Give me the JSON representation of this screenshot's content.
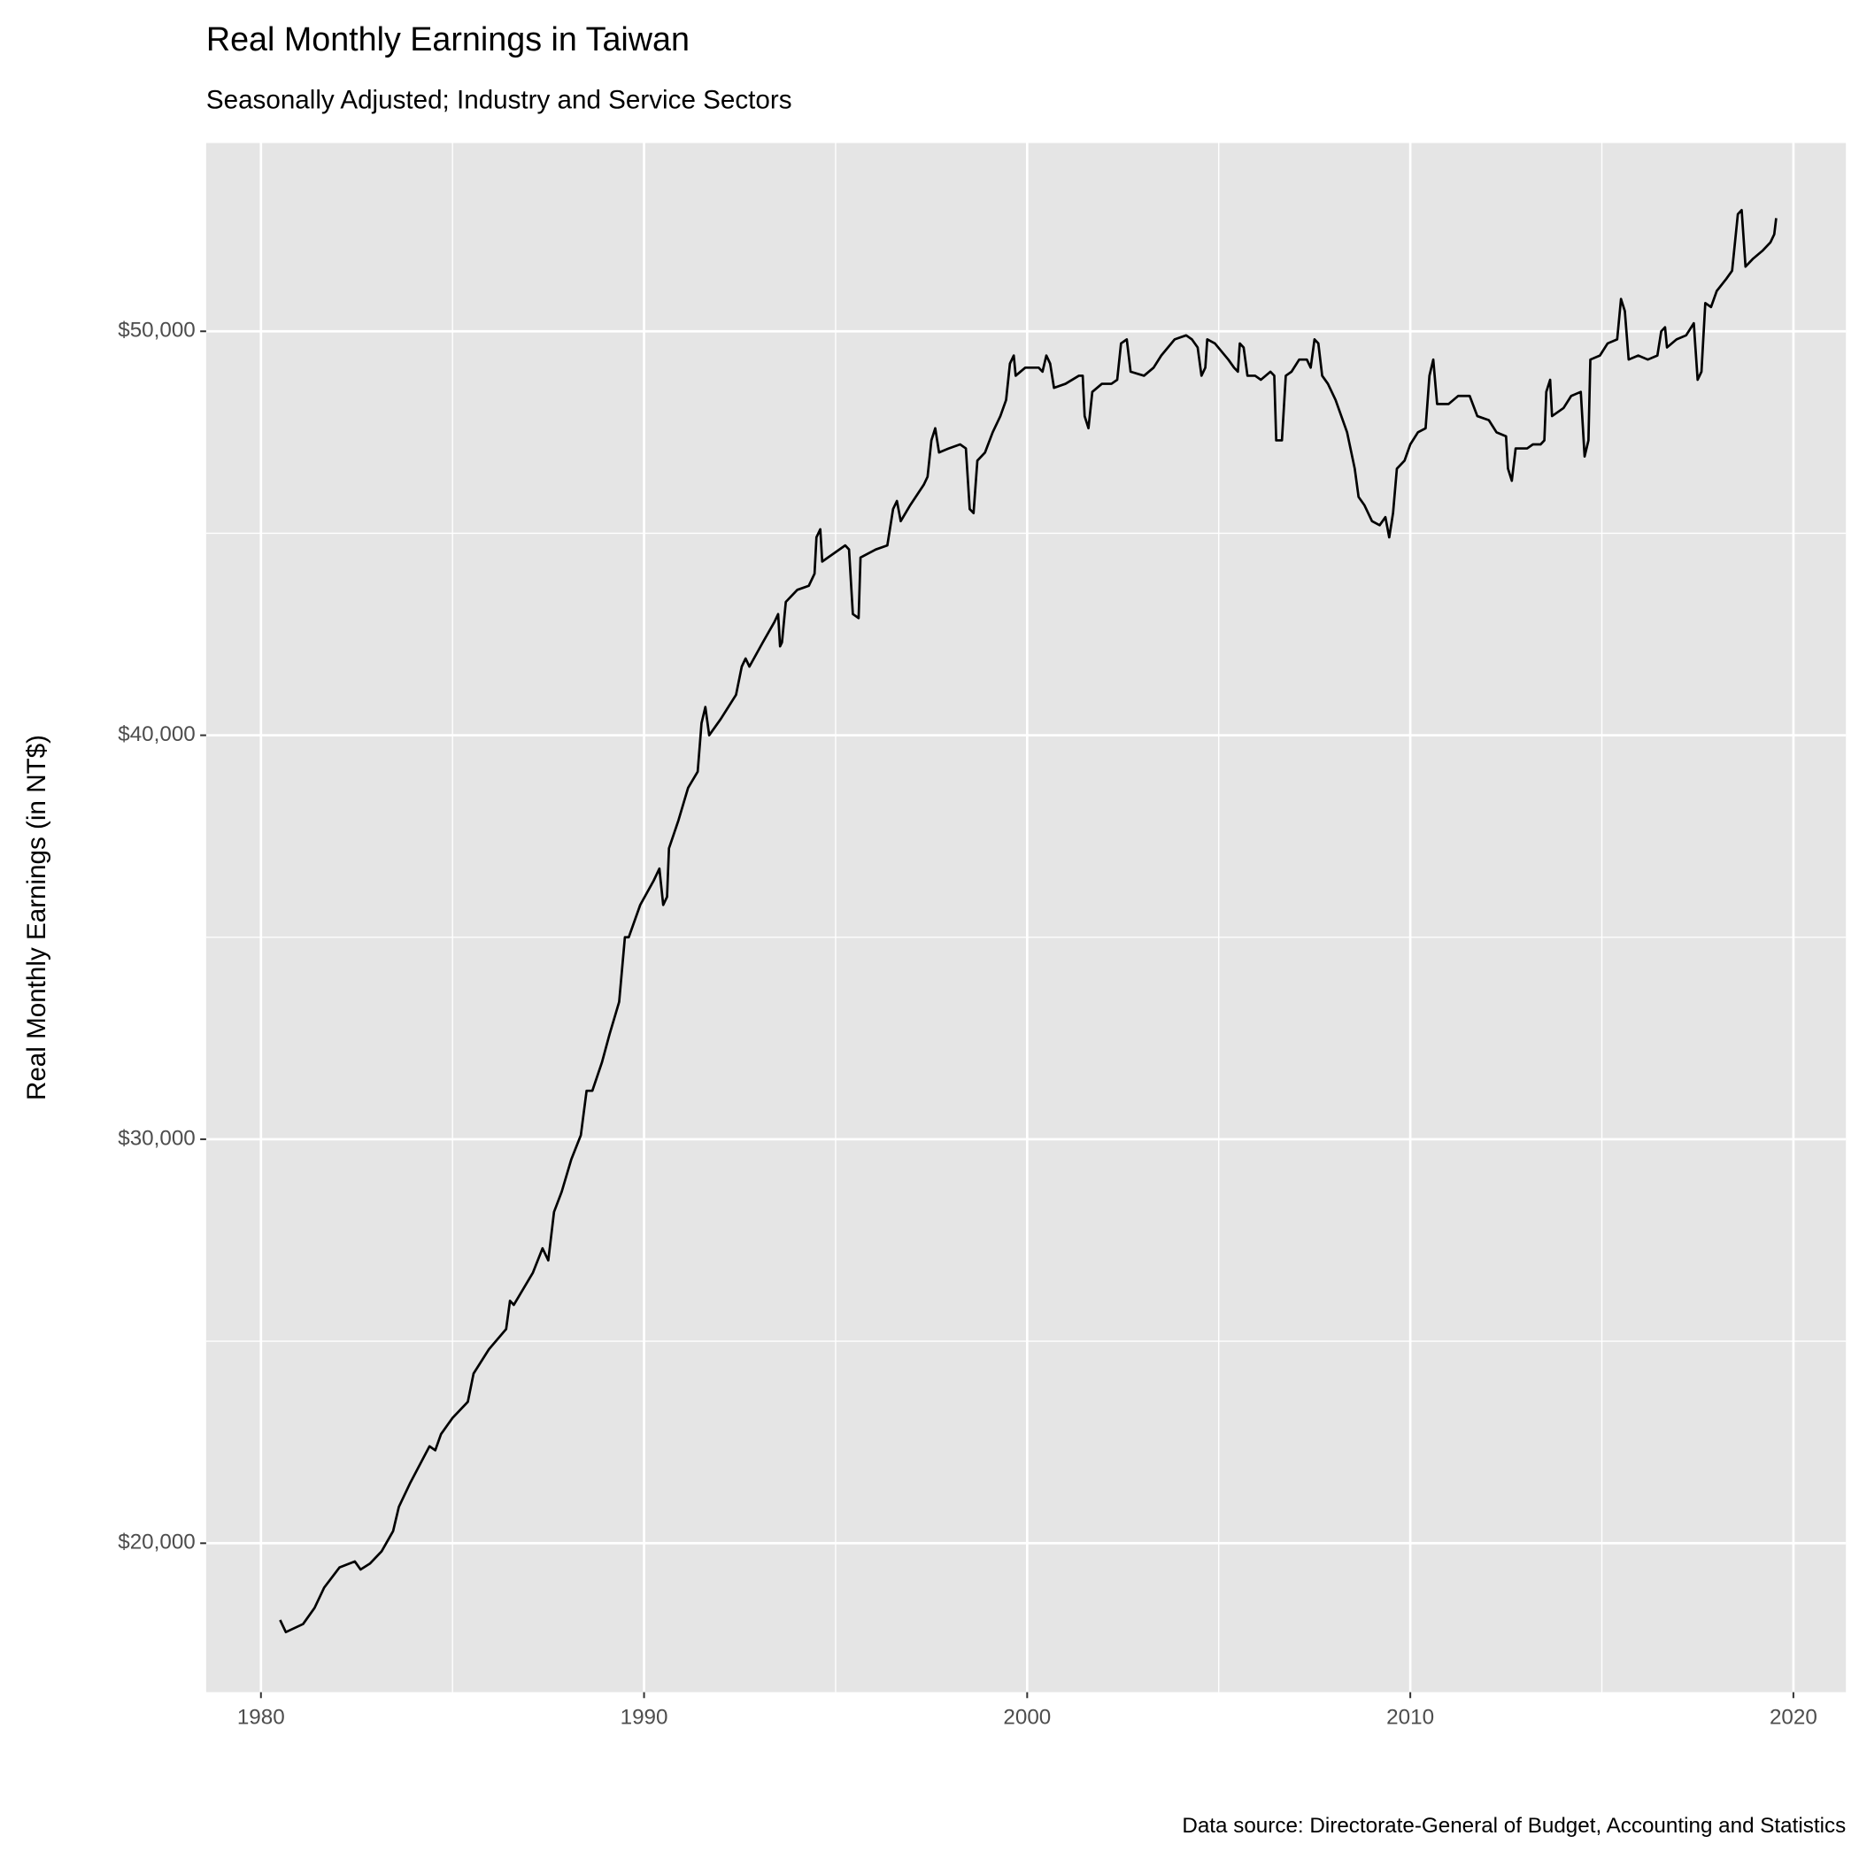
{
  "chart_data": {
    "type": "line",
    "title": "Real Monthly Earnings in Taiwan",
    "subtitle": "Seasonally Adjusted; Industry and Service Sectors",
    "y_label": "Real Monthly Earnings (in NT$)",
    "caption": "Data source: Directorate-General of Budget, Accounting and Statistics",
    "color": "#000000",
    "grid": true,
    "minor_grid": true,
    "background": "#e5e5e5",
    "xlim": [
      1978.57,
      2021.37
    ],
    "ylim": [
      16313,
      54661
    ],
    "xticks": [
      1980,
      1990,
      2000,
      2010,
      2020
    ],
    "yticks": [
      {
        "value": 20000,
        "label": "$20,000"
      },
      {
        "value": 30000,
        "label": "$30,000"
      },
      {
        "value": 40000,
        "label": "$40,000"
      },
      {
        "value": 50000,
        "label": "$50,000"
      }
    ],
    "x": [
      1980.5,
      1980.65,
      1981.1,
      1981.4,
      1981.65,
      1982.05,
      1982.45,
      1982.6,
      1982.85,
      1983.15,
      1983.45,
      1983.6,
      1983.9,
      1984.4,
      1984.55,
      1984.7,
      1985.0,
      1985.4,
      1985.55,
      1985.95,
      1986.4,
      1986.5,
      1986.6,
      1987.1,
      1987.35,
      1987.5,
      1987.65,
      1987.85,
      1988.1,
      1988.35,
      1988.5,
      1988.65,
      1988.9,
      1989.1,
      1989.35,
      1989.5,
      1989.6,
      1989.9,
      1990.25,
      1990.4,
      1990.5,
      1990.6,
      1990.65,
      1990.9,
      1991.15,
      1991.4,
      1991.5,
      1991.6,
      1991.7,
      1992.0,
      1992.2,
      1992.4,
      1992.55,
      1992.65,
      1992.75,
      1993.1,
      1993.4,
      1993.5,
      1993.55,
      1993.6,
      1993.7,
      1994.0,
      1994.3,
      1994.45,
      1994.5,
      1994.6,
      1994.65,
      1994.95,
      1995.25,
      1995.35,
      1995.45,
      1995.6,
      1995.65,
      1996.05,
      1996.35,
      1996.5,
      1996.6,
      1996.7,
      1996.95,
      1997.3,
      1997.4,
      1997.5,
      1997.6,
      1997.7,
      1997.95,
      1998.25,
      1998.4,
      1998.5,
      1998.6,
      1998.7,
      1998.9,
      1999.1,
      1999.3,
      1999.45,
      1999.55,
      1999.65,
      1999.7,
      1999.95,
      2000.3,
      2000.4,
      2000.5,
      2000.6,
      2000.7,
      2001.0,
      2001.35,
      2001.45,
      2001.5,
      2001.6,
      2001.7,
      2001.95,
      2002.2,
      2002.35,
      2002.45,
      2002.6,
      2002.7,
      2003.05,
      2003.3,
      2003.5,
      2003.85,
      2004.15,
      2004.3,
      2004.45,
      2004.55,
      2004.65,
      2004.7,
      2004.9,
      2005.25,
      2005.4,
      2005.5,
      2005.55,
      2005.65,
      2005.75,
      2005.95,
      2006.1,
      2006.35,
      2006.45,
      2006.5,
      2006.65,
      2006.75,
      2006.9,
      2007.1,
      2007.3,
      2007.4,
      2007.5,
      2007.6,
      2007.7,
      2007.85,
      2008.05,
      2008.2,
      2008.35,
      2008.55,
      2008.65,
      2008.8,
      2009.0,
      2009.2,
      2009.35,
      2009.45,
      2009.55,
      2009.65,
      2009.85,
      2010.0,
      2010.2,
      2010.4,
      2010.5,
      2010.6,
      2010.7,
      2011.0,
      2011.25,
      2011.55,
      2011.75,
      2012.05,
      2012.25,
      2012.5,
      2012.55,
      2012.65,
      2012.75,
      2013.05,
      2013.2,
      2013.4,
      2013.5,
      2013.55,
      2013.65,
      2013.7,
      2014.0,
      2014.2,
      2014.45,
      2014.55,
      2014.65,
      2014.7,
      2014.95,
      2015.15,
      2015.4,
      2015.5,
      2015.6,
      2015.7,
      2015.95,
      2016.2,
      2016.45,
      2016.55,
      2016.65,
      2016.7,
      2016.95,
      2017.2,
      2017.4,
      2017.5,
      2017.6,
      2017.7,
      2017.85,
      2018.0,
      2018.25,
      2018.4,
      2018.55,
      2018.65,
      2018.75,
      2018.95,
      2019.2,
      2019.4,
      2019.5,
      2019.55
    ],
    "values": [
      18100,
      17800,
      18000,
      18400,
      18900,
      19400,
      19550,
      19350,
      19500,
      19800,
      20300,
      20900,
      21500,
      22400,
      22300,
      22700,
      23100,
      23500,
      24200,
      24800,
      25300,
      26000,
      25900,
      26700,
      27300,
      27000,
      28200,
      28700,
      29500,
      30100,
      31200,
      31200,
      31900,
      32600,
      33400,
      35000,
      35000,
      35800,
      36400,
      36700,
      35800,
      36000,
      37200,
      37900,
      38700,
      39100,
      40300,
      40700,
      40000,
      40400,
      40700,
      41000,
      41700,
      41900,
      41700,
      42300,
      42800,
      43000,
      42200,
      42300,
      43300,
      43600,
      43700,
      44000,
      44900,
      45100,
      44300,
      44500,
      44700,
      44600,
      43000,
      42900,
      44400,
      44600,
      44700,
      45600,
      45800,
      45300,
      45700,
      46200,
      46400,
      47300,
      47600,
      47000,
      47100,
      47200,
      47100,
      45600,
      45500,
      46800,
      47000,
      47500,
      47900,
      48300,
      49200,
      49400,
      48900,
      49100,
      49100,
      49000,
      49400,
      49200,
      48600,
      48700,
      48900,
      48900,
      47900,
      47600,
      48500,
      48700,
      48700,
      48800,
      49700,
      49800,
      49000,
      48900,
      49100,
      49400,
      49800,
      49900,
      49800,
      49600,
      48900,
      49100,
      49800,
      49700,
      49300,
      49100,
      49000,
      49700,
      49600,
      48900,
      48900,
      48800,
      49000,
      48900,
      47300,
      47300,
      48900,
      49000,
      49300,
      49300,
      49100,
      49800,
      49700,
      48900,
      48700,
      48300,
      47900,
      47500,
      46600,
      45900,
      45700,
      45300,
      45200,
      45400,
      44900,
      45500,
      46600,
      46800,
      47200,
      47500,
      47600,
      48900,
      49300,
      48200,
      48200,
      48400,
      48400,
      47900,
      47800,
      47500,
      47400,
      46600,
      46300,
      47100,
      47100,
      47200,
      47200,
      47300,
      48500,
      48800,
      47900,
      48100,
      48400,
      48500,
      46900,
      47300,
      49300,
      49400,
      49700,
      49800,
      50800,
      50500,
      49300,
      49400,
      49300,
      49400,
      50000,
      50100,
      49600,
      49800,
      49900,
      50200,
      48800,
      49000,
      50700,
      50600,
      51000,
      51300,
      51500,
      52900,
      53000,
      51600,
      51800,
      52000,
      52200,
      52400,
      52800
    ]
  }
}
